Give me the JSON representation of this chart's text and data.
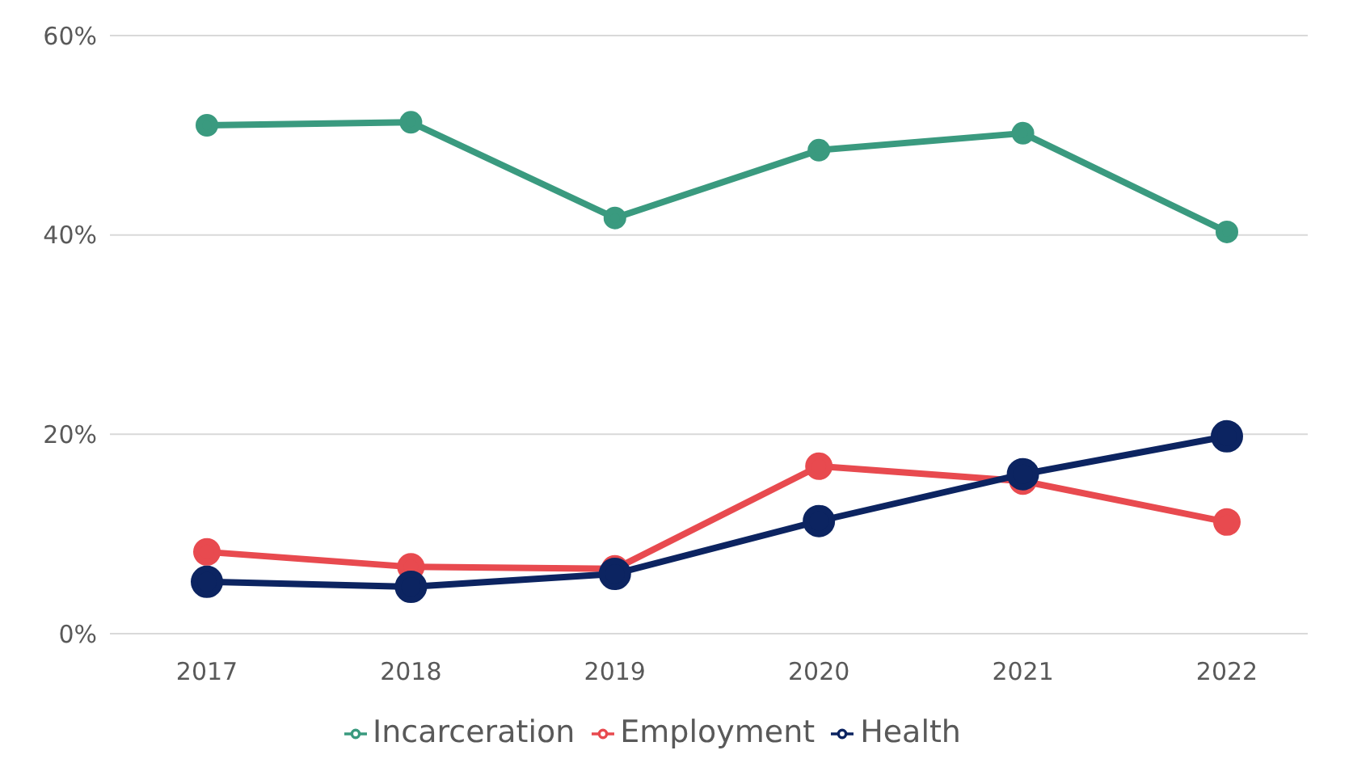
{
  "chart_data": {
    "type": "line",
    "categories": [
      "2017",
      "2018",
      "2019",
      "2020",
      "2021",
      "2022"
    ],
    "series": [
      {
        "name": "Health",
        "color": "#0c2461",
        "values": [
          5.2,
          4.7,
          6.0,
          11.3,
          16.0,
          19.8
        ]
      },
      {
        "name": "Employment",
        "color": "#e84a4f",
        "values": [
          8.2,
          6.7,
          6.5,
          16.8,
          15.3,
          11.2
        ]
      },
      {
        "name": "Incarceration",
        "color": "#3a9a7f",
        "values": [
          51.0,
          51.3,
          41.7,
          48.5,
          50.2,
          40.3
        ]
      }
    ],
    "ylim": [
      0,
      60
    ],
    "yticks": [
      {
        "value": 0,
        "label": "0%"
      },
      {
        "value": 20,
        "label": "20%"
      },
      {
        "value": 40,
        "label": "40%"
      },
      {
        "value": 60,
        "label": "60%"
      }
    ],
    "grid": "y",
    "legend": "bottom",
    "marker": "circle",
    "line_style": "solid"
  }
}
